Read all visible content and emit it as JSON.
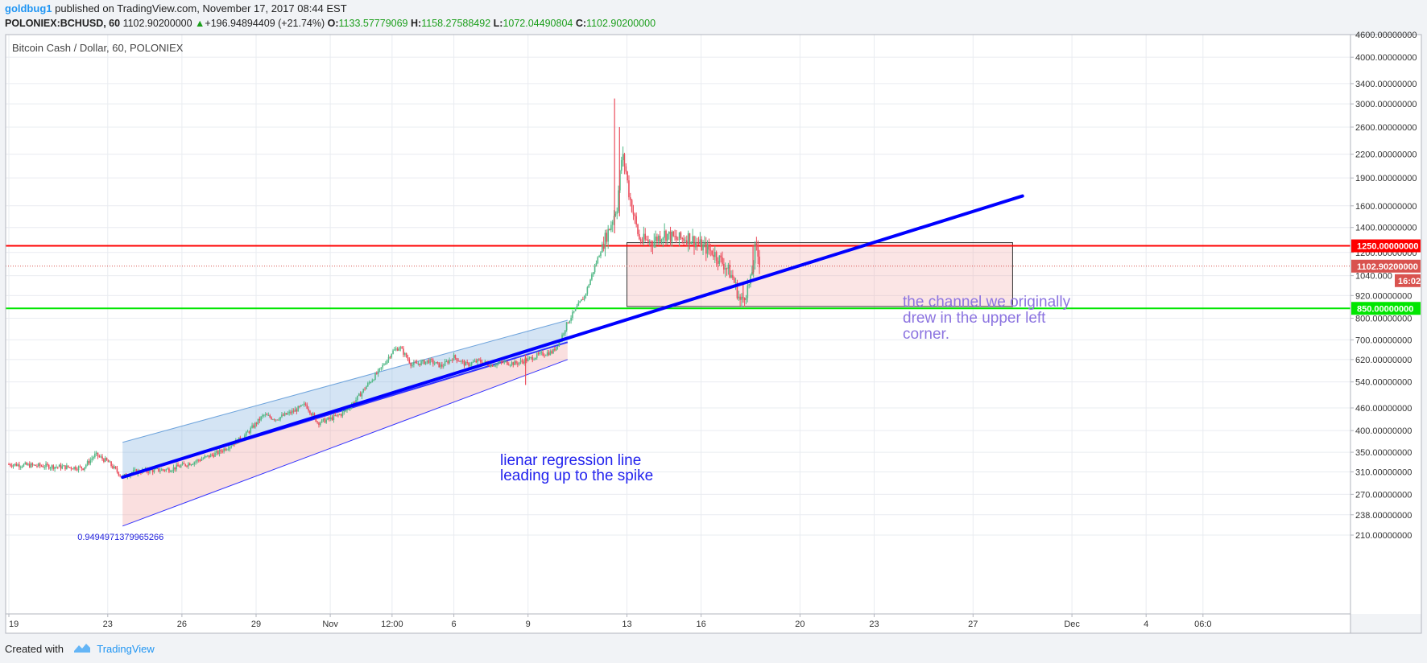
{
  "header": {
    "author": "goldbug1",
    "published_text": "published on TradingView.com, November 17, 2017 08:44 EST",
    "symbol": "POLONIEX:BCHUSD, 60",
    "last": "1102.90200000",
    "change": "+196.94894409 (+21.74%)",
    "o_label": "O:",
    "o_value": "1133.57779069",
    "h_label": "H:",
    "h_value": "1158.27588492",
    "l_label": "L:",
    "l_value": "1072.04490804",
    "c_label": "C:",
    "c_value": "1102.90200000"
  },
  "chart_title": "Bitcoin Cash / Dollar, 60, POLONIEX",
  "footer": {
    "created_with": "Created with",
    "brand": "TradingView"
  },
  "colors": {
    "up": "#53b987",
    "down": "#eb4d5c",
    "resistance": "#ff0000",
    "support": "#00e600",
    "regression": "#0000ff",
    "price_tag": "#d9534f"
  },
  "chart_data": {
    "type": "candlestick",
    "title": "Bitcoin Cash / Dollar, 60, POLONIEX",
    "y_scale": "log",
    "ylim": [
      195,
      4700
    ],
    "y_ticks": [
      {
        "v": 4600,
        "label": "4600.00000000"
      },
      {
        "v": 4000,
        "label": "4000.00000000"
      },
      {
        "v": 3400,
        "label": "3400.00000000"
      },
      {
        "v": 3000,
        "label": "3000.00000000"
      },
      {
        "v": 2600,
        "label": "2600.00000000"
      },
      {
        "v": 2200,
        "label": "2200.00000000"
      },
      {
        "v": 1900,
        "label": "1900.00000000"
      },
      {
        "v": 1600,
        "label": "1600.00000000"
      },
      {
        "v": 1400,
        "label": "1400.00000000"
      },
      {
        "v": 1200,
        "label": "1200.00000000"
      },
      {
        "v": 1040,
        "label": "1040.000"
      },
      {
        "v": 920,
        "label": "920.00000000"
      },
      {
        "v": 800,
        "label": "800.00000000"
      },
      {
        "v": 700,
        "label": "700.00000000"
      },
      {
        "v": 620,
        "label": "620.00000000"
      },
      {
        "v": 540,
        "label": "540.00000000"
      },
      {
        "v": 460,
        "label": "460.00000000"
      },
      {
        "v": 400,
        "label": "400.00000000"
      },
      {
        "v": 350,
        "label": "350.00000000"
      },
      {
        "v": 310,
        "label": "310.00000000"
      },
      {
        "v": 270,
        "label": "270.00000000"
      },
      {
        "v": 238,
        "label": "238.00000000"
      },
      {
        "v": 210,
        "label": "210.00000000"
      }
    ],
    "x_ticks": [
      "19",
      "23",
      "26",
      "29",
      "Nov",
      "12:00",
      "6",
      "9",
      "13",
      "16",
      "20",
      "23",
      "27",
      "Dec",
      "4",
      "06:0"
    ],
    "price_path": [
      [
        0,
        325
      ],
      [
        2,
        320
      ],
      [
        3,
        318
      ],
      [
        3.5,
        345
      ],
      [
        4,
        330
      ],
      [
        4.6,
        300
      ],
      [
        5,
        310
      ],
      [
        6.5,
        315
      ],
      [
        7.5,
        330
      ],
      [
        8.5,
        350
      ],
      [
        9.5,
        385
      ],
      [
        10.3,
        440
      ],
      [
        10.8,
        430
      ],
      [
        11.5,
        450
      ],
      [
        12,
        470
      ],
      [
        12.5,
        420
      ],
      [
        13,
        430
      ],
      [
        13.5,
        445
      ],
      [
        14,
        480
      ],
      [
        14.5,
        530
      ],
      [
        15,
        580
      ],
      [
        15.5,
        650
      ],
      [
        15.8,
        670
      ],
      [
        16.3,
        600
      ],
      [
        17,
        615
      ],
      [
        17.5,
        595
      ],
      [
        18,
        630
      ],
      [
        18.5,
        600
      ],
      [
        19,
        615
      ],
      [
        19.5,
        600
      ],
      [
        20,
        610
      ],
      [
        20.5,
        605
      ],
      [
        21,
        620
      ],
      [
        21.5,
        640
      ],
      [
        22,
        650
      ],
      [
        22.3,
        700
      ],
      [
        22.6,
        780
      ],
      [
        23,
        860
      ],
      [
        23.3,
        920
      ],
      [
        23.7,
        1100
      ],
      [
        24,
        1250
      ],
      [
        24.3,
        1400
      ],
      [
        24.6,
        1600
      ],
      [
        24.8,
        2200
      ],
      [
        24.95,
        2000
      ],
      [
        25.1,
        1700
      ],
      [
        25.5,
        1300
      ],
      [
        26,
        1280
      ],
      [
        26.5,
        1350
      ],
      [
        27,
        1300
      ],
      [
        27.5,
        1320
      ],
      [
        28,
        1250
      ],
      [
        28.5,
        1200
      ],
      [
        29,
        1100
      ],
      [
        29.3,
        1020
      ],
      [
        29.6,
        880
      ],
      [
        30,
        1000
      ],
      [
        30.2,
        1250
      ],
      [
        30.4,
        1103
      ]
    ],
    "wicks": [
      {
        "x": 24.5,
        "low": 1350,
        "high": 3100
      },
      {
        "x": 24.7,
        "low": 1500,
        "high": 2600
      },
      {
        "x": 20.9,
        "low": 530,
        "high": 640
      },
      {
        "x": 29.7,
        "low": 880,
        "high": 1000
      },
      {
        "x": 30.1,
        "low": 1050,
        "high": 1260
      }
    ],
    "horizontal_lines": [
      {
        "name": "resistance",
        "value": 1250,
        "label": "1250.00000000"
      },
      {
        "name": "support",
        "value": 850,
        "label": "850.00000000"
      }
    ],
    "current_price": {
      "value": 1102.902,
      "label": "1102.90200000",
      "countdown": "16:02"
    },
    "regression_channel": {
      "x_start": 4.6,
      "x_end": 22.6,
      "mid_start": 300,
      "mid_end": 690,
      "upper_start": 372,
      "upper_end": 790,
      "lower_start": 222,
      "lower_end": 620,
      "coefficient": "0.9494971379965266"
    },
    "regression_extension": {
      "x_start": 4.6,
      "y_start": 300,
      "x_end": 41,
      "y_end": 1700
    },
    "rectangle": {
      "x_start": 25,
      "x_end": 40.6,
      "top": 1275,
      "bottom": 860
    },
    "annotations": [
      {
        "text": [
          "lienar regression line",
          "leading up to the spike"
        ]
      },
      {
        "text": [
          "the channel we originally",
          "drew in the upper left",
          "corner."
        ]
      }
    ]
  }
}
